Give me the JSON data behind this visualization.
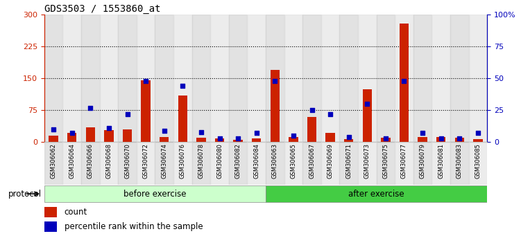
{
  "title": "GDS3503 / 1553860_at",
  "samples": [
    "GSM306062",
    "GSM306064",
    "GSM306066",
    "GSM306068",
    "GSM306070",
    "GSM306072",
    "GSM306074",
    "GSM306076",
    "GSM306078",
    "GSM306080",
    "GSM306082",
    "GSM306084",
    "GSM306063",
    "GSM306065",
    "GSM306067",
    "GSM306069",
    "GSM306071",
    "GSM306073",
    "GSM306075",
    "GSM306077",
    "GSM306079",
    "GSM306081",
    "GSM306083",
    "GSM306085"
  ],
  "count": [
    15,
    22,
    35,
    28,
    30,
    145,
    12,
    110,
    10,
    8,
    6,
    8,
    170,
    12,
    60,
    22,
    7,
    125,
    10,
    280,
    12,
    12,
    10,
    7
  ],
  "pct": [
    10,
    7,
    27,
    11,
    22,
    48,
    9,
    44,
    8,
    3,
    3,
    7,
    48,
    5,
    25,
    22,
    4,
    30,
    3,
    48,
    7,
    3,
    3,
    7
  ],
  "group1_count": 12,
  "group2_count": 12,
  "group1_label": "before exercise",
  "group2_label": "after exercise",
  "group1_color": "#ccffcc",
  "group2_color": "#44cc44",
  "bar_color": "#cc2200",
  "dot_color": "#0000bb",
  "title_fontsize": 10,
  "yticks_left": [
    0,
    75,
    150,
    225,
    300
  ],
  "ytick_labels_right": [
    "0",
    "25",
    "50",
    "75",
    "100%"
  ],
  "left_tick_color": "#cc2200",
  "right_tick_color": "#0000bb",
  "legend_count": "count",
  "legend_pct": "percentile rank within the sample",
  "protocol_label": "protocol"
}
